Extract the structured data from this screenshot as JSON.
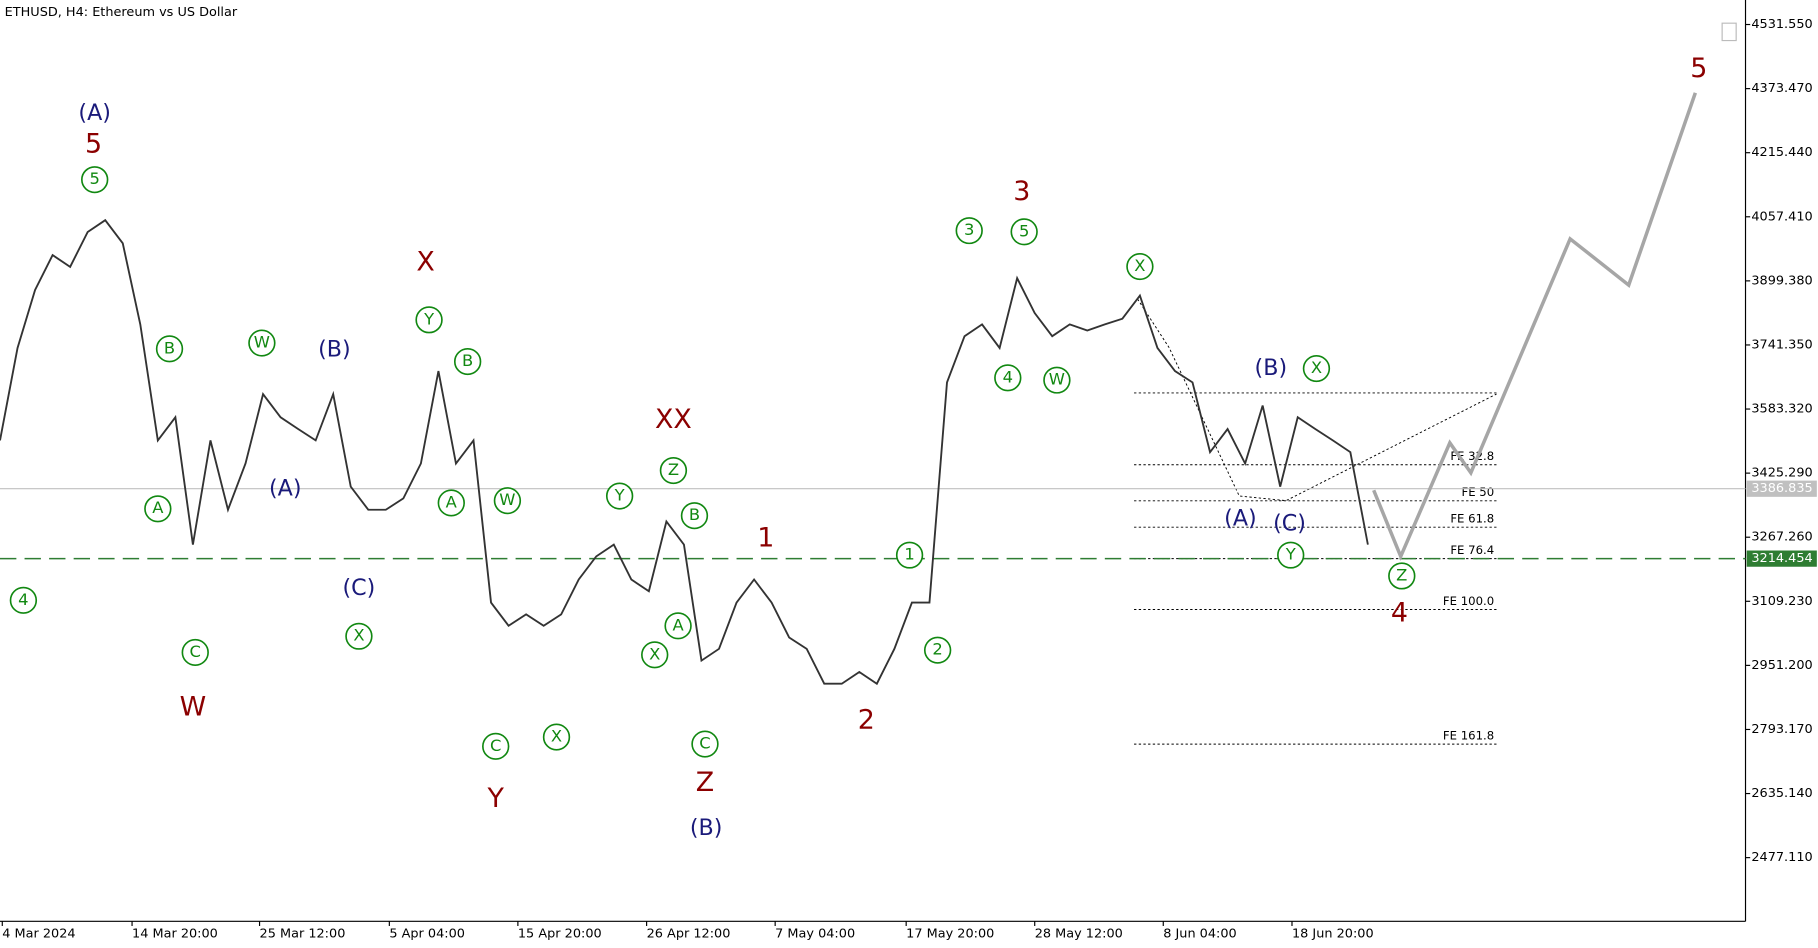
{
  "chart_data": {
    "type": "line",
    "title": "ETHUSD, H4:  Ethereum vs US Dollar",
    "series": [
      {
        "color": "#333333",
        "values": [
          3506,
          3734,
          3877,
          3963,
          3934,
          4020,
          4049,
          3992,
          3792,
          3506,
          3563,
          3249,
          3506,
          3335,
          3449,
          3620,
          3563,
          3534,
          3506,
          3620,
          3392,
          3335,
          3335,
          3363,
          3449,
          3677,
          3449,
          3506,
          3106,
          3049,
          3077,
          3049,
          3077,
          3163,
          3220,
          3249,
          3163,
          3134,
          3306,
          3249,
          2963,
          2992,
          3106,
          3163,
          3106,
          3020,
          2992,
          2906,
          2906,
          2935,
          2906,
          2992,
          3106,
          3106,
          3649,
          3763,
          3792,
          3734,
          3906,
          3820,
          3763,
          3792,
          3777,
          3792,
          3806,
          3863,
          3734,
          3677,
          3649,
          3477,
          3534,
          3449,
          3592,
          3392,
          3563,
          3534,
          3506,
          3477,
          3249
        ]
      }
    ],
    "forecast": {
      "color": "#a6a6a6",
      "x": [
        78.33,
        79.87,
        82.67,
        83.87,
        89.53,
        92.87,
        96.67
      ],
      "values": [
        3383,
        3220,
        3500,
        3426,
        4003,
        3889,
        4363
      ]
    },
    "xlim": [
      0,
      99.53
    ],
    "xticks": [
      {
        "value": 0.13,
        "label": "4 Mar 2024"
      },
      {
        "value": 7.53,
        "label": "14 Mar 20:00"
      },
      {
        "value": 14.8,
        "label": "25 Mar 12:00"
      },
      {
        "value": 22.2,
        "label": "5 Apr 04:00"
      },
      {
        "value": 29.53,
        "label": "15 Apr 20:00"
      },
      {
        "value": 36.87,
        "label": "26 Apr 12:00"
      },
      {
        "value": 44.2,
        "label": "7 May 04:00"
      },
      {
        "value": 51.67,
        "label": "17 May 20:00"
      },
      {
        "value": 59,
        "label": "28 May 12:00"
      },
      {
        "value": 66.33,
        "label": "8 Jun 04:00"
      },
      {
        "value": 73.67,
        "label": "18 Jun 20:00"
      }
    ],
    "ylim": [
      2320,
      4592
    ],
    "yticks": [
      {
        "value": 4531.55,
        "label": "4531.550"
      },
      {
        "value": 4373.47,
        "label": "4373.470"
      },
      {
        "value": 4215.44,
        "label": "4215.440"
      },
      {
        "value": 4057.41,
        "label": "4057.410"
      },
      {
        "value": 3899.38,
        "label": "3899.380"
      },
      {
        "value": 3741.35,
        "label": "3741.350"
      },
      {
        "value": 3583.32,
        "label": "3583.320"
      },
      {
        "value": 3425.29,
        "label": "3425.290"
      },
      {
        "value": 3267.26,
        "label": "3267.260"
      },
      {
        "value": 3109.23,
        "label": "3109.230"
      },
      {
        "value": 2951.2,
        "label": "2951.200"
      },
      {
        "value": 2793.17,
        "label": "2793.170"
      },
      {
        "value": 2635.14,
        "label": "2635.140"
      },
      {
        "value": 2477.11,
        "label": "2477.110"
      }
    ],
    "current_price": {
      "value": 3386.835,
      "label": "3386.835",
      "color": "#c0c0c0"
    },
    "level": {
      "value": 3214.454,
      "label": "3214.454",
      "color": "#2e7d32"
    },
    "fib_levels": [
      {
        "value": 3623,
        "label": null
      },
      {
        "value": 3446,
        "label": "FE 32.8"
      },
      {
        "value": 3357,
        "label": "FE 50"
      },
      {
        "value": 3292,
        "label": "FE 61.8"
      },
      {
        "value": 3214.5,
        "label": "FE 76.4"
      },
      {
        "value": 3089,
        "label": "FE 100.0"
      },
      {
        "value": 2757,
        "label": "FE 161.8"
      }
    ],
    "annotations": [
      "(A)",
      "5",
      "⑤",
      "④",
      "Ⓑ",
      "Ⓐ",
      "Ⓒ",
      "W",
      "Ⓦ",
      "(B)",
      "(A)",
      "(C)",
      "Ⓧ",
      "X",
      "Ⓨ",
      "Ⓑ",
      "Ⓐ",
      "Ⓦ",
      "Ⓒ",
      "Y",
      "Ⓧ",
      "XX",
      "Ⓩ",
      "Ⓨ",
      "Ⓑ",
      "Ⓐ",
      "Ⓧ",
      "Ⓒ",
      "Z",
      "(B)",
      "1",
      "2",
      "①",
      "②",
      "3",
      "③",
      "⑤",
      "④",
      "Ⓦ",
      "Ⓧ",
      "(B)",
      "Ⓧ",
      "(A)",
      "(C)",
      "Ⓨ",
      "Ⓩ",
      "4",
      "5"
    ]
  }
}
